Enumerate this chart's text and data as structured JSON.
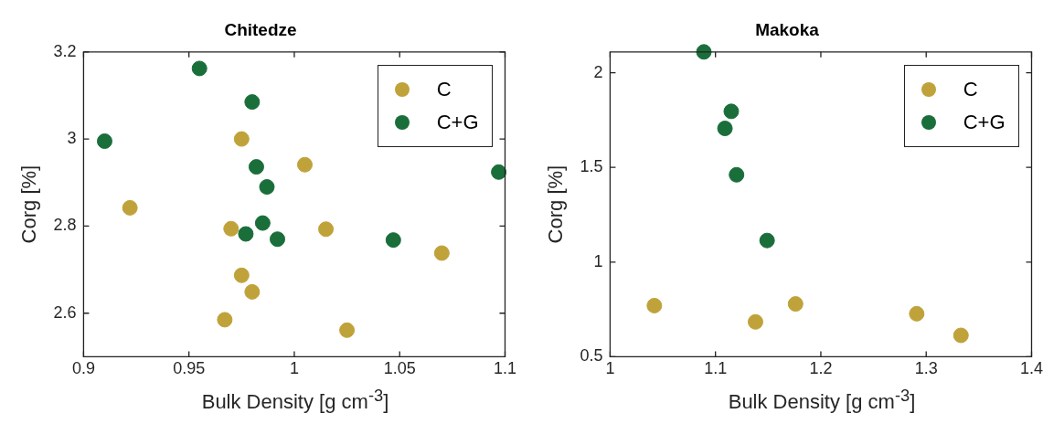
{
  "chart_data": [
    {
      "type": "scatter",
      "title": "Chitedze",
      "xlabel": "Bulk Density [g cm$^{-3}$]",
      "ylabel": "Corg [%]",
      "xlim": [
        0.9,
        1.1
      ],
      "ylim": [
        2.5,
        3.2
      ],
      "xticks": [
        0.9,
        0.95,
        1,
        1.05,
        1.1
      ],
      "yticks": [
        2.6,
        2.8,
        3,
        3.2
      ],
      "grid": false,
      "legend": "top right",
      "marker": "circle",
      "series": [
        {
          "name": "C",
          "color": "#c0a23a",
          "x": [
            0.975,
            1.005,
            0.922,
            0.97,
            1.015,
            1.07,
            0.975,
            0.98,
            0.967,
            1.025
          ],
          "values": [
            3.0,
            2.941,
            2.842,
            2.794,
            2.793,
            2.738,
            2.687,
            2.649,
            2.585,
            2.561
          ]
        },
        {
          "name": "C+G",
          "color": "#1a6e3a",
          "x": [
            0.955,
            0.98,
            0.91,
            0.982,
            0.987,
            0.985,
            0.977,
            0.992,
            1.047,
            1.097
          ],
          "values": [
            3.162,
            3.085,
            2.995,
            2.936,
            2.89,
            2.807,
            2.782,
            2.77,
            2.768,
            2.924
          ]
        }
      ]
    },
    {
      "type": "scatter",
      "title": "Makoka",
      "xlabel": "Bulk Density [g cm$^{-3}$]",
      "ylabel": "Corg [%]",
      "xlim": [
        1,
        1.4
      ],
      "ylim": [
        0.5,
        2.11
      ],
      "xticks": [
        1,
        1.1,
        1.2,
        1.3,
        1.4
      ],
      "yticks": [
        0.5,
        1,
        1.5,
        2
      ],
      "grid": false,
      "legend": "top right",
      "marker": "circle",
      "series": [
        {
          "name": "C",
          "color": "#c0a23a",
          "x": [
            1.042,
            1.138,
            1.176,
            1.291,
            1.333
          ],
          "values": [
            0.77,
            0.684,
            0.779,
            0.727,
            0.613
          ]
        },
        {
          "name": "C+G",
          "color": "#1a6e3a",
          "x": [
            1.089,
            1.115,
            1.109,
            1.12,
            1.149
          ],
          "values": [
            2.11,
            1.796,
            1.706,
            1.461,
            1.114
          ]
        }
      ]
    }
  ]
}
